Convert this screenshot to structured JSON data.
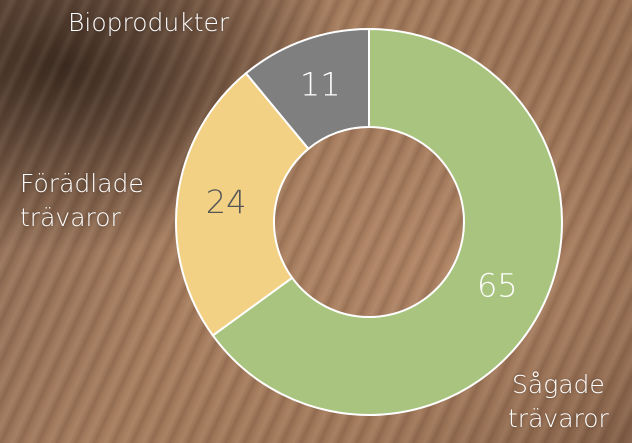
{
  "chart_data": {
    "type": "donut",
    "categories": [
      "Sågade\nträvaror",
      "Förädlade\nträvaror",
      "Bioprodukter"
    ],
    "values": [
      65,
      24,
      11
    ],
    "colors": [
      "#a9c47f",
      "#f2d184",
      "#7f7f7f"
    ]
  }
}
